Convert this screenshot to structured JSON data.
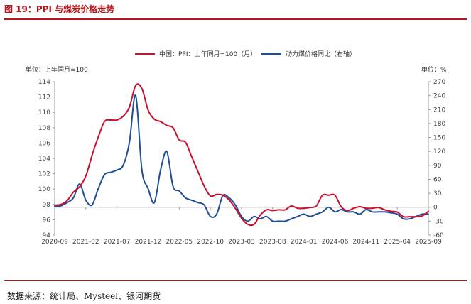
{
  "title": "图 19：PPI 与煤炭价格走势",
  "source": "数据来源：统计局、Mysteel、银河期货",
  "chart_data": {
    "type": "line",
    "left_unit": "单位：上年同月=100",
    "right_unit": "单位：%",
    "x_ticks": [
      "2020-09",
      "2021-02",
      "2021-07",
      "2021-12",
      "2022-05",
      "2022-10",
      "2023-03",
      "2023-08",
      "2024-01",
      "2024-06",
      "2024-11",
      "2025-04",
      "2025-09"
    ],
    "ylim_left": [
      94,
      114
    ],
    "yticks_left": [
      94,
      96,
      98,
      100,
      102,
      104,
      106,
      108,
      110,
      112,
      114
    ],
    "ylim_right": [
      -60,
      270
    ],
    "yticks_right": [
      -60,
      -30,
      0,
      30,
      60,
      90,
      120,
      150,
      180,
      210,
      240,
      270
    ],
    "series": [
      {
        "name": "中国：PPI：上年同月=100（月）",
        "axis": "left",
        "color": "#c8102e",
        "x": [
          0,
          1,
          2,
          3,
          4,
          5,
          6,
          7,
          8,
          9,
          10,
          11,
          12,
          13,
          14,
          15,
          16,
          17,
          18,
          19,
          20,
          21,
          22,
          23,
          24,
          25,
          26,
          27,
          28,
          29,
          30,
          31,
          32,
          33,
          34,
          35,
          36,
          37,
          38,
          39,
          40,
          41,
          42,
          43,
          44,
          45,
          46,
          47,
          48,
          49,
          50,
          51,
          52,
          53,
          54,
          55,
          56,
          57,
          58,
          59,
          60
        ],
        "values": [
          97.9,
          98.0,
          98.5,
          99.6,
          100.3,
          101.7,
          104.4,
          106.8,
          108.8,
          109.0,
          109.0,
          109.5,
          110.7,
          113.5,
          113.1,
          110.3,
          109.1,
          108.8,
          108.3,
          108.0,
          106.4,
          106.1,
          104.2,
          102.3,
          100.4,
          99.1,
          99.3,
          99.2,
          98.6,
          97.5,
          96.2,
          95.4,
          95.4,
          96.6,
          97.3,
          97.2,
          97.3,
          97.3,
          97.8,
          97.5,
          97.5,
          97.6,
          97.8,
          99.2,
          99.2,
          99.2,
          97.7,
          97.2,
          97.5,
          97.7,
          97.5,
          97.5,
          97.6,
          97.3,
          97.1,
          97.0,
          96.4,
          96.4,
          96.4,
          96.5,
          97.1
        ]
      },
      {
        "name": "动力煤价格同比（右轴）",
        "axis": "right",
        "color": "#1f4e96",
        "x": [
          0,
          1,
          2,
          3,
          4,
          5,
          6,
          7,
          8,
          9,
          10,
          11,
          12,
          13,
          14,
          15,
          16,
          17,
          18,
          19,
          20,
          21,
          22,
          23,
          24,
          25,
          26,
          27,
          28,
          29,
          30,
          31,
          32,
          33,
          34,
          35,
          36,
          37,
          38,
          39,
          40,
          41,
          42,
          43,
          44,
          45,
          46,
          47,
          48,
          49,
          50,
          51,
          52,
          53,
          54,
          55,
          56,
          57,
          58,
          59,
          60
        ],
        "values": [
          2,
          3,
          10,
          20,
          50,
          15,
          5,
          40,
          70,
          75,
          80,
          90,
          140,
          240,
          80,
          40,
          10,
          80,
          120,
          45,
          35,
          20,
          15,
          10,
          5,
          -20,
          -15,
          25,
          20,
          5,
          -20,
          -30,
          -20,
          -25,
          -20,
          -30,
          -30,
          -30,
          -25,
          -20,
          -15,
          -20,
          -15,
          -10,
          0,
          -10,
          -5,
          -10,
          -10,
          -15,
          -5,
          -10,
          -10,
          -10,
          -12,
          -15,
          -25,
          -25,
          -20,
          -15,
          -15
        ]
      }
    ]
  }
}
